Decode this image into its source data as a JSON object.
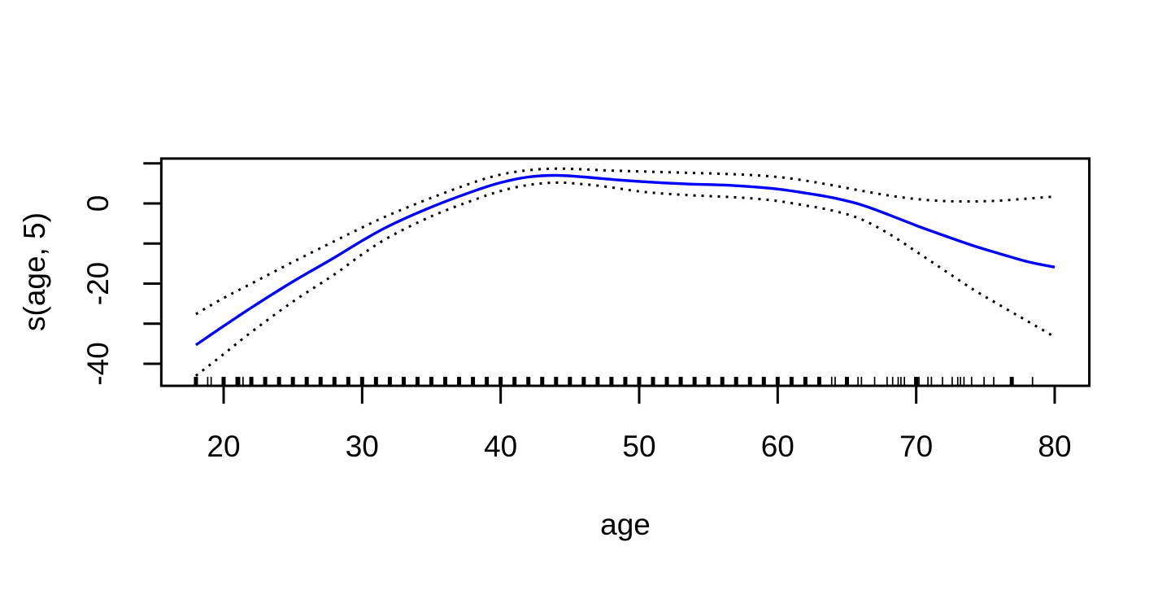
{
  "figure": {
    "background": "#ffffff",
    "kind": "R base-graphics GAM smooth plot"
  },
  "chart_data": {
    "type": "line",
    "title": "",
    "xlabel": "age",
    "ylabel": "s(age, 5)",
    "legend": "none",
    "grid": false,
    "xlim": [
      15.5,
      82.5
    ],
    "ylim": [
      -45.5,
      11.2
    ],
    "x_ticks": [
      20,
      30,
      40,
      50,
      60,
      70,
      80
    ],
    "x_tick_labels": [
      "20",
      "30",
      "40",
      "50",
      "60",
      "70",
      "80"
    ],
    "y_ticks": [
      10,
      0,
      -10,
      -20,
      -30,
      -40
    ],
    "y_tick_labels": [
      "0",
      "-20",
      "-40"
    ],
    "axis_color": "#000000",
    "axis_line_width": 3,
    "tick_length": 22,
    "x": [
      18,
      20,
      22,
      25,
      28,
      30,
      32,
      35,
      38,
      40,
      42,
      44,
      46,
      48,
      50,
      52,
      54,
      56,
      58,
      60,
      62,
      64,
      66,
      68,
      70,
      72,
      74,
      76,
      78,
      80
    ],
    "series": [
      {
        "name": "fit",
        "label": "spline fit s(age, 5)",
        "color": "#0000ff",
        "style": "solid",
        "width": 3.4,
        "y": [
          -35.3,
          -30.6,
          -26.0,
          -19.5,
          -13.5,
          -9.3,
          -5.5,
          -0.9,
          3.0,
          5.2,
          6.6,
          7.0,
          6.6,
          6.0,
          5.5,
          5.1,
          4.8,
          4.6,
          4.2,
          3.6,
          2.6,
          1.4,
          -0.3,
          -2.8,
          -5.5,
          -8.0,
          -10.4,
          -12.5,
          -14.5,
          -15.9
        ]
      },
      {
        "name": "upper-se",
        "label": "upper standard-error band",
        "color": "#000000",
        "style": "dotted",
        "width": 3,
        "y": [
          -27.6,
          -23.6,
          -20.0,
          -14.6,
          -9.4,
          -6.0,
          -2.8,
          1.4,
          5.2,
          7.2,
          8.3,
          8.7,
          8.5,
          8.2,
          8.0,
          7.8,
          7.6,
          7.4,
          7.1,
          6.6,
          5.7,
          4.5,
          3.2,
          2.0,
          1.1,
          0.6,
          0.5,
          0.7,
          1.2,
          1.7
        ]
      },
      {
        "name": "lower-se",
        "label": "lower standard-error band",
        "color": "#000000",
        "style": "dotted",
        "width": 3,
        "y": [
          -43.0,
          -37.6,
          -32.1,
          -24.5,
          -17.7,
          -12.7,
          -8.3,
          -3.2,
          0.8,
          3.1,
          4.6,
          5.2,
          4.8,
          4.0,
          3.0,
          2.4,
          2.0,
          1.7,
          1.3,
          0.6,
          -0.5,
          -1.8,
          -3.9,
          -7.5,
          -12.0,
          -16.6,
          -21.2,
          -25.3,
          -29.3,
          -33.3
        ]
      }
    ],
    "rug": {
      "height": 11,
      "major_width": 5,
      "minor_width": 1.7,
      "major": [
        18,
        20,
        21,
        22,
        23,
        24,
        25,
        26,
        27,
        28,
        29,
        30,
        31,
        32,
        33,
        34,
        35,
        36,
        37,
        38,
        39,
        40,
        41,
        42,
        43,
        44,
        45,
        46,
        47,
        48,
        49,
        50,
        51,
        52,
        53,
        54,
        55,
        56,
        57,
        58,
        59,
        60,
        61,
        62,
        63,
        65,
        70,
        76.9
      ],
      "minor": [
        18.85,
        19.1,
        21.15,
        21.4,
        63.9,
        64.15,
        65.8,
        66.05,
        67.0,
        67.9,
        68.3,
        68.7,
        68.9,
        69.15,
        69.9,
        70.2,
        70.85,
        71.1,
        71.9,
        72.6,
        73.0,
        73.2,
        73.45,
        74.0,
        74.9,
        75.6,
        78.4
      ]
    }
  }
}
